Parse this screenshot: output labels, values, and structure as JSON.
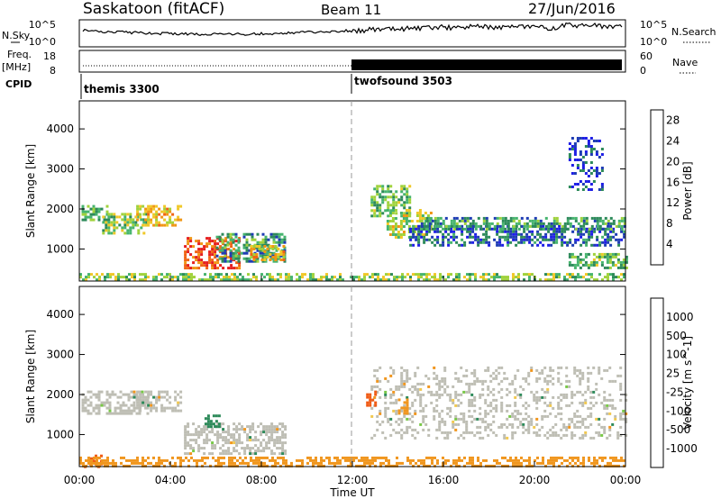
{
  "header": {
    "station": "Saskatoon (fitACF)",
    "beam": "Beam 11",
    "date": "27/Jun/2016"
  },
  "left_labels": {
    "nsky": "N.Sky",
    "freq": "Freq.",
    "freq_unit": "[MHz]",
    "cpid": "CPID"
  },
  "right_labels": {
    "nsearch": "N.Search",
    "nave": "Nave"
  },
  "noise_panel": {
    "ticks_left": [
      "10^5",
      "10^0"
    ],
    "ticks_right": [
      "10^5",
      "10^0"
    ]
  },
  "freq_panel": {
    "ticks_left": [
      "18",
      "8"
    ],
    "ticks_right": [
      "60",
      "0"
    ]
  },
  "cpid_segments": [
    {
      "label": "themis 3300",
      "start_hour": 0,
      "end_hour": 11.85
    },
    {
      "label": "twofsound 3503",
      "start_hour": 11.85,
      "end_hour": 24
    }
  ],
  "colors": {
    "power_scale": [
      "#1e1ee6",
      "#1e3cb4",
      "#2d8a5a",
      "#46b46e",
      "#a0d23c",
      "#f0c828",
      "#f09614",
      "#f06414",
      "#e61e1e"
    ],
    "velocity_scale": [
      "#e61e1e",
      "#f05a14",
      "#f0961e",
      "#f0c850",
      "#bebeb4",
      "#78c846",
      "#2d8a5a",
      "#2d50b4",
      "#1e1ee6"
    ]
  },
  "chart_data": [
    {
      "type": "heatmap",
      "title": "Power [dB]",
      "xlabel": "Time UT",
      "ylabel": "Slant Range [km]",
      "xlim": [
        0,
        24
      ],
      "ylim": [
        200,
        4700
      ],
      "x_ticks": [
        "00:00",
        "04:00",
        "08:00",
        "12:00",
        "16:00",
        "20:00",
        "00:00"
      ],
      "y_ticks": [
        "1000",
        "2000",
        "3000",
        "4000"
      ],
      "colorbar": {
        "label": "Power [dB]",
        "ticks": [
          "4",
          "8",
          "12",
          "16",
          "20",
          "24",
          "28"
        ],
        "range": [
          0,
          30
        ]
      },
      "regions": [
        {
          "t0": 0.1,
          "t1": 1.2,
          "r0": 1700,
          "r1": 2100,
          "value": 12
        },
        {
          "t0": 1.0,
          "t1": 3.0,
          "r0": 1400,
          "r1": 1900,
          "value": 14
        },
        {
          "t0": 2.5,
          "t1": 4.5,
          "r0": 1600,
          "r1": 2100,
          "value": 20
        },
        {
          "t0": 4.6,
          "t1": 7.0,
          "r0": 500,
          "r1": 1300,
          "value": 26
        },
        {
          "t0": 6.0,
          "t1": 9.0,
          "r0": 700,
          "r1": 1400,
          "value": 10
        },
        {
          "t0": 7.5,
          "t1": 9.0,
          "r0": 700,
          "r1": 1100,
          "value": 20
        },
        {
          "t0": 0.0,
          "t1": 24.0,
          "r0": 200,
          "r1": 400,
          "value": 14
        },
        {
          "t0": 12.8,
          "t1": 14.5,
          "r0": 1800,
          "r1": 2600,
          "value": 12
        },
        {
          "t0": 13.5,
          "t1": 15.5,
          "r0": 1300,
          "r1": 2000,
          "value": 16
        },
        {
          "t0": 14.5,
          "t1": 24.0,
          "r0": 1100,
          "r1": 1600,
          "value": 6
        },
        {
          "t0": 15.0,
          "t1": 24.0,
          "r0": 1500,
          "r1": 1800,
          "value": 10
        },
        {
          "t0": 21.5,
          "t1": 24.0,
          "r0": 500,
          "r1": 900,
          "value": 12
        },
        {
          "t0": 21.5,
          "t1": 23.0,
          "r0": 2500,
          "r1": 3800,
          "value": 4
        }
      ]
    },
    {
      "type": "heatmap",
      "title": "Velocity [m s^-1]",
      "xlabel": "Time UT",
      "ylabel": "Slant Range [km]",
      "xlim": [
        0,
        24
      ],
      "ylim": [
        200,
        4700
      ],
      "x_ticks": [
        "00:00",
        "04:00",
        "08:00",
        "12:00",
        "16:00",
        "20:00",
        "00:00"
      ],
      "y_ticks": [
        "1000",
        "2000",
        "3000",
        "4000"
      ],
      "colorbar": {
        "label": "Velocity [m s^-1]",
        "ticks": [
          "1000",
          "500",
          "100",
          "25",
          "-25",
          "-100",
          "-500",
          "-1000"
        ],
        "range": [
          -1000,
          1000
        ]
      },
      "regions": [
        {
          "t0": 0.1,
          "t1": 3.0,
          "r0": 1500,
          "r1": 2100,
          "value": 0
        },
        {
          "t0": 2.5,
          "t1": 4.5,
          "r0": 1600,
          "r1": 2100,
          "value": 0
        },
        {
          "t0": 4.6,
          "t1": 9.0,
          "r0": 500,
          "r1": 1300,
          "value": 0
        },
        {
          "t0": 0.2,
          "t1": 1.0,
          "r0": 200,
          "r1": 500,
          "value": -800
        },
        {
          "t0": 0.0,
          "t1": 24.0,
          "r0": 200,
          "r1": 450,
          "value": -150
        },
        {
          "t0": 12.8,
          "t1": 24.0,
          "r0": 900,
          "r1": 2700,
          "value": 0
        },
        {
          "t0": 12.6,
          "t1": 13.0,
          "r0": 1700,
          "r1": 2100,
          "value": -700
        },
        {
          "t0": 14.0,
          "t1": 14.4,
          "r0": 1500,
          "r1": 1900,
          "value": -300
        },
        {
          "t0": 5.5,
          "t1": 6.2,
          "r0": 1200,
          "r1": 1500,
          "value": 300
        }
      ]
    }
  ]
}
